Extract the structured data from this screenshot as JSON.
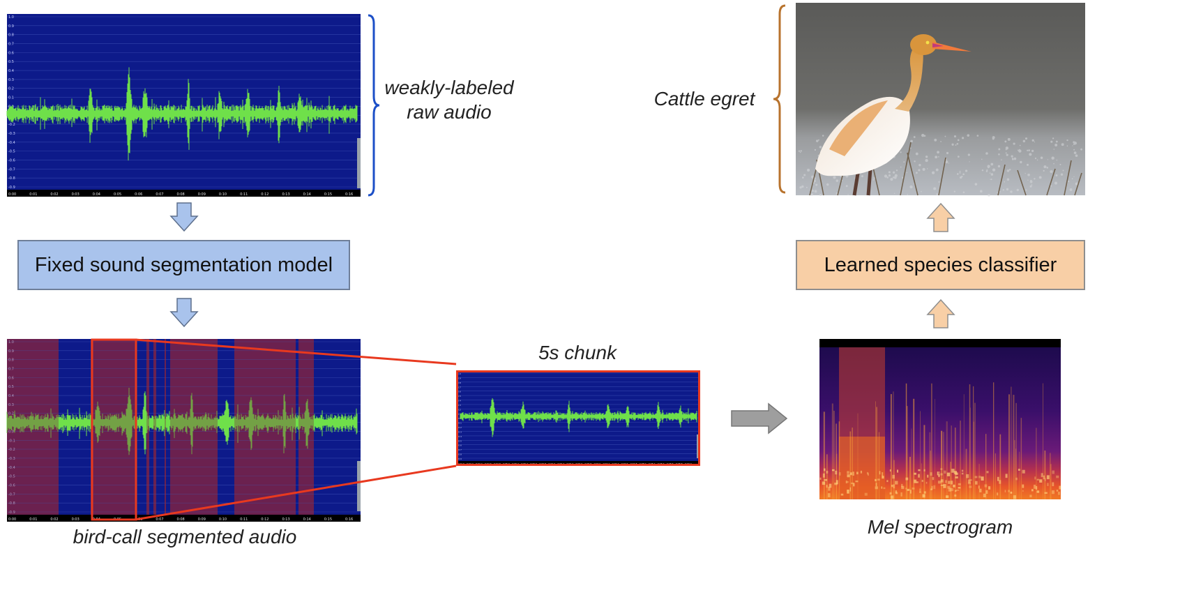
{
  "raw_audio": {
    "label_line1": "weakly-labeled",
    "label_line2": "raw audio",
    "y_ticks": [
      "1.0",
      "0.9",
      "0.8",
      "0.7",
      "0.6",
      "0.5",
      "0.4",
      "0.3",
      "0.2",
      "0.1",
      "0.0",
      "-0.1",
      "-0.2",
      "-0.3",
      "-0.4",
      "-0.5",
      "-0.6",
      "-0.7",
      "-0.8",
      "-0.9"
    ],
    "x_ticks": [
      "0:00",
      "0:01",
      "0:02",
      "0:03",
      "0:04",
      "0:05",
      "0:06",
      "0:07",
      "0:08",
      "0:09",
      "0:10",
      "0:11",
      "0:12",
      "0:13",
      "0:14",
      "0:15",
      "0:16"
    ]
  },
  "segmentation_model": {
    "label": "Fixed sound segmentation model"
  },
  "segmented_audio": {
    "label": "bird-call segmented audio"
  },
  "chunk": {
    "label": "5s chunk",
    "x_ticks": [
      "0:04.0",
      "0:04.2",
      "0:04.4",
      "0:04.6",
      "0:04.8",
      "0:05.0",
      "0:05.2",
      "0:05.4",
      "0:05.6",
      "0:05.8",
      "0:06.0",
      "0:06.2",
      "0:06.4",
      "0:06.6",
      "0:06.8",
      "0:07.0",
      "0:07.2",
      "0:07.4",
      "0:07.6",
      "0:07.8",
      "0:08.0",
      "0:08.2",
      "0:08.4",
      "0:08.6",
      "0:08.8",
      "0:09.0"
    ]
  },
  "spectrogram": {
    "label": "Mel spectrogram"
  },
  "classifier": {
    "label": "Learned species classifier"
  },
  "species": {
    "label": "Cattle egret"
  },
  "colors": {
    "waveform_bg": "#0d1a8a",
    "waveform": "#6fe04a",
    "segment_red": "#6a1d55",
    "highlight": "#e8391f",
    "brace_blue": "#1c4fc7",
    "brace_orange": "#b8732d",
    "arrow_blue": "#a9c3ec",
    "arrow_orange": "#f8cfa6",
    "arrow_gray": "#9e9e9e"
  }
}
